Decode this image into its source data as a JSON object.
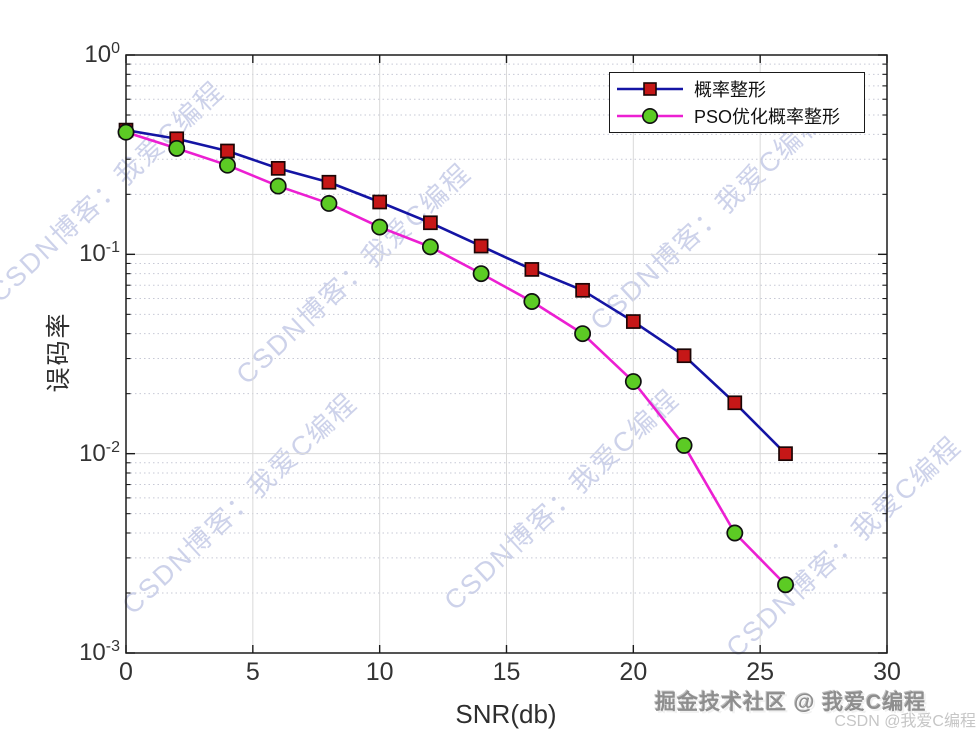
{
  "watermark": {
    "diagonal_text": "CSDN博客：我爱C编程",
    "color": "#8893cd"
  },
  "footer": {
    "juejin_text": "掘金技术社区 @ 我爱C编程",
    "csdn_text": "CSDN @我爱C编程"
  },
  "axes_style": {
    "axis_color": "#1b1b1b",
    "tick_label_color": "#333333",
    "major_grid_color": "#d9d9d9",
    "minor_grid_color": "#c7c9d6"
  },
  "chart_data": {
    "type": "line",
    "title": "",
    "xlabel": "SNR(db)",
    "ylabel": "误码率",
    "xlim": [
      0,
      30
    ],
    "ylim": [
      0.001,
      1
    ],
    "y_scale": "log",
    "x_ticks": [
      0,
      5,
      10,
      15,
      20,
      25,
      30
    ],
    "y_tick_exponents": [
      0,
      -1,
      -2,
      -3
    ],
    "grid": true,
    "minor_grid": true,
    "legend_position": "northeast",
    "x": [
      0,
      2,
      4,
      6,
      8,
      10,
      12,
      14,
      16,
      18,
      20,
      22,
      24,
      26
    ],
    "series": [
      {
        "name": "概率整形",
        "line_color": "#1414a4",
        "marker": "square",
        "marker_fill": "#c61717",
        "marker_edge": "#1c0505",
        "values": [
          0.42,
          0.38,
          0.33,
          0.27,
          0.23,
          0.183,
          0.144,
          0.11,
          0.084,
          0.066,
          0.046,
          0.031,
          0.018,
          0.01
        ]
      },
      {
        "name": "PSO优化概率整形",
        "line_color": "#ec1fd2",
        "marker": "circle",
        "marker_fill": "#5ccb24",
        "marker_edge": "#101010",
        "values": [
          0.41,
          0.34,
          0.28,
          0.22,
          0.18,
          0.137,
          0.109,
          0.08,
          0.058,
          0.04,
          0.023,
          0.011,
          0.004,
          0.0022
        ]
      }
    ]
  }
}
